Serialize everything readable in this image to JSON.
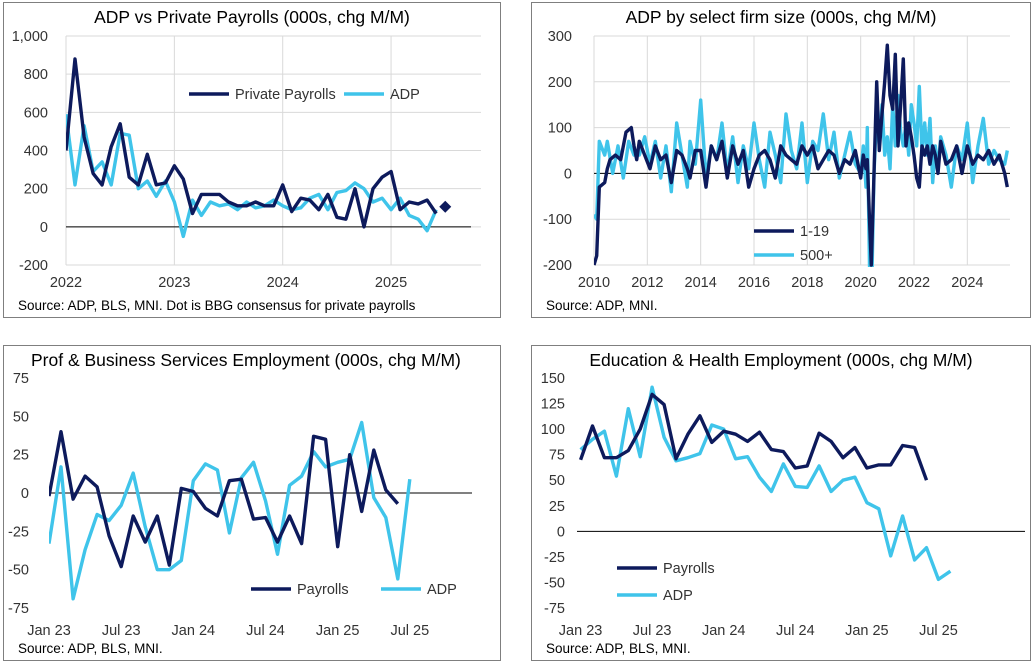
{
  "chart_data": [
    {
      "type": "line",
      "title": "ADP vs Private Payrolls (000s, chg M/M)",
      "source": "Source: ADP, BLS, MNI. Dot is BBG consensus for private payrolls",
      "ylim": [
        -200,
        1000
      ],
      "y_ticks": [
        "-200",
        "0",
        "200",
        "400",
        "600",
        "800",
        "1,000"
      ],
      "x_ticks": [
        "2022",
        "2023",
        "2024",
        "2025"
      ],
      "x_tick_values": [
        2022,
        2023,
        2024,
        2025
      ],
      "xlim": [
        2022.0,
        2025.83
      ],
      "grid": true,
      "legend_position": "top-center",
      "series": [
        {
          "name": "Private Payrolls",
          "color": "#0d1a5c",
          "x": [
            2022.0,
            2022.083,
            2022.167,
            2022.25,
            2022.333,
            2022.417,
            2022.5,
            2022.583,
            2022.667,
            2022.75,
            2022.833,
            2022.917,
            2023.0,
            2023.083,
            2023.167,
            2023.25,
            2023.333,
            2023.417,
            2023.5,
            2023.583,
            2023.667,
            2023.75,
            2023.833,
            2023.917,
            2024.0,
            2024.083,
            2024.167,
            2024.25,
            2024.333,
            2024.417,
            2024.5,
            2024.583,
            2024.667,
            2024.75,
            2024.833,
            2024.917,
            2025.0,
            2025.083,
            2025.167,
            2025.25,
            2025.333,
            2025.417
          ],
          "values": [
            400,
            880,
            470,
            280,
            220,
            420,
            540,
            260,
            220,
            380,
            220,
            230,
            320,
            250,
            70,
            170,
            170,
            170,
            130,
            110,
            110,
            130,
            110,
            110,
            220,
            80,
            150,
            140,
            90,
            170,
            50,
            40,
            200,
            0,
            200,
            260,
            290,
            90,
            130,
            120,
            140,
            70
          ]
        },
        {
          "name": "ADP",
          "color": "#3fc4ea",
          "x": [
            2022.0,
            2022.083,
            2022.167,
            2022.25,
            2022.333,
            2022.417,
            2022.5,
            2022.583,
            2022.667,
            2022.75,
            2022.833,
            2022.917,
            2023.0,
            2023.083,
            2023.167,
            2023.25,
            2023.333,
            2023.417,
            2023.5,
            2023.583,
            2023.667,
            2023.75,
            2023.833,
            2023.917,
            2024.0,
            2024.083,
            2024.167,
            2024.25,
            2024.333,
            2024.417,
            2024.5,
            2024.583,
            2024.667,
            2024.75,
            2024.833,
            2024.917,
            2025.0,
            2025.083,
            2025.167,
            2025.25,
            2025.333,
            2025.417
          ],
          "values": [
            590,
            220,
            530,
            290,
            340,
            220,
            490,
            480,
            200,
            240,
            160,
            240,
            130,
            -50,
            140,
            60,
            130,
            110,
            120,
            90,
            130,
            100,
            110,
            140,
            110,
            90,
            100,
            150,
            170,
            90,
            180,
            190,
            230,
            200,
            130,
            150,
            90,
            150,
            60,
            40,
            -20,
            90
          ]
        }
      ],
      "annotations": [
        {
          "label": "BBG consensus",
          "x": 2025.5,
          "y": 105,
          "shape": "diamond"
        }
      ]
    },
    {
      "type": "line",
      "title": "ADP by select firm size (000s, chg M/M)",
      "source": "Source: ADP, MNI.",
      "ylim": [
        -200,
        300
      ],
      "y_ticks": [
        "-200",
        "-100",
        "0",
        "100",
        "200",
        "300"
      ],
      "x_ticks": [
        "2010",
        "2012",
        "2014",
        "2016",
        "2018",
        "2020",
        "2022",
        "2024"
      ],
      "x_tick_values": [
        2010,
        2012,
        2014,
        2016,
        2018,
        2020,
        2022,
        2024
      ],
      "xlim": [
        2010.0,
        2025.6
      ],
      "grid": true,
      "legend_position": "bottom-right",
      "series": [
        {
          "name": "1-19",
          "color": "#0d1a5c",
          "x": [
            2010.0,
            2010.1,
            2010.2,
            2010.4,
            2010.5,
            2010.6,
            2010.8,
            2011.0,
            2011.2,
            2011.4,
            2011.5,
            2011.6,
            2011.7,
            2011.9,
            2012.1,
            2012.3,
            2012.5,
            2012.7,
            2012.9,
            2013.1,
            2013.3,
            2013.5,
            2013.6,
            2013.8,
            2014.0,
            2014.2,
            2014.4,
            2014.6,
            2014.8,
            2015.0,
            2015.2,
            2015.4,
            2015.6,
            2015.8,
            2016.0,
            2016.2,
            2016.4,
            2016.6,
            2016.8,
            2017.0,
            2017.2,
            2017.4,
            2017.6,
            2017.8,
            2018.0,
            2018.2,
            2018.4,
            2018.6,
            2018.8,
            2019.0,
            2019.2,
            2019.4,
            2019.6,
            2019.8,
            2020.0,
            2020.1,
            2020.2,
            2020.25,
            2020.33,
            2020.4,
            2020.5,
            2020.6,
            2020.7,
            2020.8,
            2020.9,
            2021.0,
            2021.1,
            2021.2,
            2021.3,
            2021.4,
            2021.5,
            2021.6,
            2021.7,
            2021.8,
            2021.9,
            2022.0,
            2022.1,
            2022.2,
            2022.3,
            2022.4,
            2022.5,
            2022.6,
            2022.7,
            2022.8,
            2022.9,
            2023.0,
            2023.2,
            2023.4,
            2023.6,
            2023.8,
            2024.0,
            2024.2,
            2024.4,
            2024.6,
            2024.8,
            2025.0,
            2025.2,
            2025.4,
            2025.5
          ],
          "values": [
            -200,
            -180,
            -30,
            -20,
            10,
            30,
            40,
            30,
            90,
            100,
            60,
            30,
            70,
            40,
            10,
            60,
            30,
            40,
            -20,
            50,
            40,
            10,
            -10,
            50,
            50,
            -30,
            60,
            30,
            70,
            -10,
            60,
            20,
            50,
            -30,
            10,
            40,
            50,
            30,
            -10,
            60,
            40,
            30,
            20,
            60,
            40,
            60,
            10,
            30,
            50,
            40,
            0,
            30,
            20,
            50,
            -10,
            40,
            10,
            30,
            -100,
            -200,
            0,
            200,
            50,
            130,
            200,
            280,
            170,
            140,
            260,
            60,
            150,
            250,
            60,
            110,
            80,
            40,
            -10,
            -30,
            60,
            40,
            60,
            20,
            60,
            40,
            0,
            70,
            20,
            30,
            60,
            0,
            60,
            20,
            40,
            30,
            50,
            20,
            40,
            0,
            -30
          ]
        },
        {
          "name": "500+",
          "color": "#3fc4ea",
          "x": [
            2010.0,
            2010.1,
            2010.2,
            2010.4,
            2010.5,
            2010.7,
            2010.9,
            2011.1,
            2011.3,
            2011.5,
            2011.7,
            2011.9,
            2012.1,
            2012.3,
            2012.5,
            2012.7,
            2012.9,
            2013.1,
            2013.3,
            2013.5,
            2013.6,
            2013.8,
            2014.0,
            2014.2,
            2014.4,
            2014.6,
            2014.8,
            2015.0,
            2015.2,
            2015.4,
            2015.6,
            2015.8,
            2016.0,
            2016.2,
            2016.4,
            2016.6,
            2016.8,
            2017.0,
            2017.2,
            2017.4,
            2017.6,
            2017.8,
            2018.0,
            2018.2,
            2018.4,
            2018.6,
            2018.8,
            2019.0,
            2019.2,
            2019.4,
            2019.6,
            2019.8,
            2020.0,
            2020.1,
            2020.2,
            2020.25,
            2020.33,
            2020.4,
            2020.5,
            2020.6,
            2020.7,
            2020.8,
            2020.9,
            2021.0,
            2021.1,
            2021.2,
            2021.3,
            2021.4,
            2021.5,
            2021.6,
            2021.7,
            2021.8,
            2021.9,
            2022.0,
            2022.1,
            2022.2,
            2022.3,
            2022.4,
            2022.5,
            2022.6,
            2022.7,
            2022.8,
            2022.9,
            2023.0,
            2023.2,
            2023.4,
            2023.6,
            2023.8,
            2024.0,
            2024.2,
            2024.4,
            2024.6,
            2024.8,
            2025.0,
            2025.2,
            2025.4,
            2025.5
          ],
          "values": [
            -90,
            -100,
            70,
            40,
            70,
            0,
            60,
            -10,
            70,
            40,
            40,
            80,
            20,
            70,
            -10,
            60,
            -40,
            110,
            40,
            -30,
            70,
            20,
            160,
            -10,
            60,
            30,
            110,
            0,
            80,
            -20,
            60,
            10,
            110,
            30,
            -30,
            90,
            40,
            -20,
            130,
            50,
            10,
            110,
            -20,
            70,
            50,
            130,
            30,
            90,
            -10,
            40,
            90,
            20,
            0,
            60,
            -30,
            100,
            -200,
            -300,
            0,
            130,
            60,
            150,
            40,
            80,
            10,
            150,
            60,
            170,
            90,
            60,
            110,
            40,
            150,
            110,
            60,
            190,
            50,
            110,
            40,
            120,
            -20,
            60,
            10,
            80,
            40,
            -30,
            60,
            30,
            110,
            -20,
            60,
            120,
            20,
            50,
            30,
            20,
            50
          ]
        }
      ]
    },
    {
      "type": "line",
      "title": "Prof & Business Services Employment (000s, chg M/M)",
      "source": "Source: ADP, BLS, MNI.",
      "ylim": [
        -75,
        75
      ],
      "y_ticks": [
        "-75",
        "-50",
        "-25",
        "0",
        "25",
        "50",
        "75"
      ],
      "x_ticks": [
        "Jan 23",
        "Jul 23",
        "Jan 24",
        "Jul 24",
        "Jan 25",
        "Jul 25"
      ],
      "x_tick_values": [
        0,
        6,
        12,
        18,
        24,
        30
      ],
      "xlim": [
        0,
        36
      ],
      "grid": false,
      "legend_position": "bottom-center",
      "series": [
        {
          "name": "Payrolls",
          "color": "#0d1a5c",
          "x": [
            0,
            1,
            2,
            3,
            4,
            5,
            6,
            7,
            8,
            9,
            10,
            11,
            12,
            13,
            14,
            15,
            16,
            17,
            18,
            19,
            20,
            21,
            22,
            23,
            24,
            25,
            26,
            27,
            28,
            29,
            30
          ],
          "values": [
            -2,
            40,
            -4,
            11,
            4,
            -28,
            -48,
            -15,
            -32,
            -15,
            -47,
            3,
            1,
            -10,
            -15,
            8,
            9,
            -17,
            -16,
            -32,
            -15,
            -33,
            37,
            35,
            -35,
            25,
            -12,
            28,
            2,
            -7,
            null
          ]
        },
        {
          "name": "ADP",
          "color": "#3fc4ea",
          "x": [
            0,
            1,
            2,
            3,
            4,
            5,
            6,
            7,
            8,
            9,
            10,
            11,
            12,
            13,
            14,
            15,
            16,
            17,
            18,
            19,
            20,
            21,
            22,
            23,
            24,
            25,
            26,
            27,
            28,
            29,
            30
          ],
          "values": [
            -33,
            17,
            -69,
            -37,
            -14,
            -18,
            -8,
            13,
            -22,
            -50,
            -50,
            -44,
            8,
            19,
            15,
            -26,
            10,
            20,
            -5,
            -40,
            5,
            11,
            27,
            17,
            20,
            22,
            46,
            -3,
            -16,
            -56,
            9
          ]
        }
      ]
    },
    {
      "type": "line",
      "title": "Education & Health Employment (000s, chg M/M)",
      "source": "Source: ADP, BLS, MNI.",
      "ylim": [
        -75,
        150
      ],
      "y_ticks": [
        "-75",
        "-50",
        "-25",
        "0",
        "25",
        "50",
        "75",
        "100",
        "125",
        "150"
      ],
      "x_ticks": [
        "Jan 23",
        "Jul 23",
        "Jan 24",
        "Jul 24",
        "Jan 25",
        "Jul 25"
      ],
      "x_tick_values": [
        0,
        6,
        12,
        18,
        24,
        30
      ],
      "xlim": [
        -0.3,
        36
      ],
      "grid": false,
      "legend_position": "bottom-left",
      "series": [
        {
          "name": "Payrolls",
          "color": "#0d1a5c",
          "x": [
            0,
            1,
            2,
            3,
            4,
            5,
            6,
            7,
            8,
            9,
            10,
            11,
            12,
            13,
            14,
            15,
            16,
            17,
            18,
            19,
            20,
            21,
            22,
            23,
            24,
            25,
            26,
            27,
            28,
            29
          ],
          "values": [
            70,
            103,
            72,
            72,
            79,
            100,
            134,
            124,
            71,
            95,
            113,
            87,
            98,
            95,
            88,
            97,
            80,
            78,
            62,
            64,
            96,
            88,
            72,
            82,
            62,
            65,
            65,
            84,
            82,
            50
          ]
        },
        {
          "name": "ADP",
          "color": "#3fc4ea",
          "x": [
            0,
            1,
            2,
            3,
            4,
            5,
            6,
            7,
            8,
            9,
            10,
            11,
            12,
            13,
            14,
            15,
            16,
            17,
            18,
            19,
            20,
            21,
            22,
            23,
            24,
            25,
            26,
            27,
            28,
            29,
            30,
            31
          ],
          "values": [
            80,
            90,
            98,
            54,
            120,
            73,
            141,
            92,
            69,
            72,
            76,
            104,
            100,
            71,
            73,
            53,
            39,
            66,
            44,
            43,
            64,
            39,
            50,
            53,
            28,
            22,
            -24,
            15,
            -28,
            -16,
            -47,
            -39
          ]
        }
      ]
    }
  ]
}
